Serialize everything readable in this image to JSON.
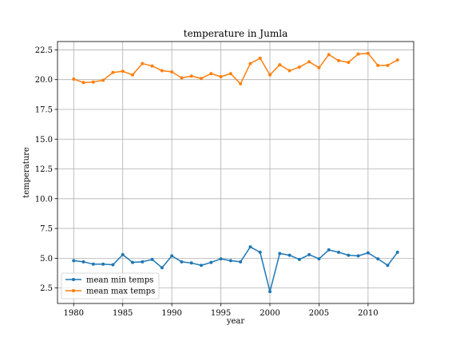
{
  "chart_data": {
    "type": "line",
    "title": "temperature in Jumla",
    "xlabel": "year",
    "ylabel": "temperature",
    "xlim": [
      1978.35,
      2014.65
    ],
    "ylim": [
      1.2,
      23.2
    ],
    "xticks": [
      1980,
      1985,
      1990,
      1995,
      2000,
      2005,
      2010
    ],
    "yticks": [
      2.5,
      5.0,
      7.5,
      10.0,
      12.5,
      15.0,
      17.5,
      20.0,
      22.5
    ],
    "grid": true,
    "legend_position": "lower-left",
    "x": [
      1980,
      1981,
      1982,
      1983,
      1984,
      1985,
      1986,
      1987,
      1988,
      1989,
      1990,
      1991,
      1992,
      1993,
      1994,
      1995,
      1996,
      1997,
      1998,
      1999,
      2000,
      2001,
      2002,
      2003,
      2004,
      2005,
      2006,
      2007,
      2008,
      2009,
      2010,
      2011,
      2012,
      2013
    ],
    "series": [
      {
        "name": "mean min temps",
        "color": "#1f77b4",
        "values": [
          4.8,
          4.7,
          4.5,
          4.5,
          4.45,
          5.3,
          4.65,
          4.7,
          4.9,
          4.2,
          5.2,
          4.7,
          4.6,
          4.4,
          4.65,
          4.95,
          4.8,
          4.7,
          5.95,
          5.5,
          2.2,
          5.4,
          5.25,
          4.9,
          5.3,
          4.95,
          5.7,
          5.5,
          5.25,
          5.2,
          5.45,
          4.95,
          4.4,
          5.5
        ]
      },
      {
        "name": "mean max temps",
        "color": "#ff7f0e",
        "values": [
          20.05,
          19.75,
          19.8,
          19.95,
          20.6,
          20.7,
          20.4,
          21.35,
          21.15,
          20.75,
          20.65,
          20.15,
          20.3,
          20.1,
          20.5,
          20.25,
          20.5,
          19.65,
          21.35,
          21.8,
          20.4,
          21.25,
          20.75,
          21.05,
          21.5,
          21.0,
          22.1,
          21.6,
          21.45,
          22.15,
          22.2,
          21.2,
          21.2,
          21.65
        ]
      }
    ]
  }
}
